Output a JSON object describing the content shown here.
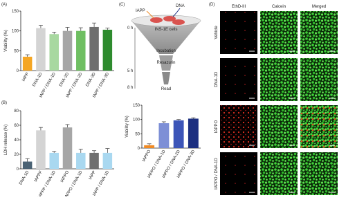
{
  "panels": [
    "(A)",
    "(B)",
    "(C)",
    "(D)"
  ],
  "chart_data": [
    {
      "type": "bar",
      "y_label": "Viability (%)",
      "categories": [
        "IAPP",
        "DNA-1D",
        "IAPP / DNA-1D",
        "DNA-2D",
        "IAPP / DNA-2D",
        "DNA-3D",
        "IAPP / DNA-3D"
      ],
      "values": [
        35,
        107,
        92,
        100,
        100,
        110,
        103
      ],
      "errors": [
        5,
        7,
        5,
        9,
        8,
        10,
        4
      ],
      "colors": [
        "#f5a623",
        "#d4d4d4",
        "#a8d8a0",
        "#a6a6a6",
        "#6fbf62",
        "#6f6f6f",
        "#2e8b2e"
      ],
      "ylim": [
        0,
        150
      ],
      "yticks": [
        0,
        50,
        100,
        150
      ]
    },
    {
      "type": "bar",
      "y_label": "LDH release (%)",
      "categories": [
        "DNA-1D",
        "IAPPF",
        "IAPPF / DNA-1D",
        "IAPPO",
        "IAPPO / DNA-1D",
        "IAPP",
        "IAPP / DNA-1D"
      ],
      "values": [
        10,
        53,
        22,
        57,
        22,
        22,
        22
      ],
      "errors": [
        4,
        4,
        2,
        4,
        5,
        3,
        6
      ],
      "colors": [
        "#4a6274",
        "#d4d4d4",
        "#a9d8f0",
        "#a6a6a6",
        "#a9d8f0",
        "#6f6f6f",
        "#a9d8f0"
      ],
      "ylim": [
        0,
        80
      ],
      "yticks": [
        0,
        20,
        40,
        60,
        80
      ]
    },
    {
      "type": "bar",
      "y_label": "Viability (%)",
      "categories": [
        "IAPPO",
        "IAPPO / DNA-1D",
        "IAPPO / DNA-2D",
        "IAPPO / DNA-3D"
      ],
      "values": [
        10,
        87,
        97,
        103
      ],
      "errors": [
        5,
        5,
        3,
        3
      ],
      "colors": [
        "#f08a24",
        "#7d8fd6",
        "#3c55b8",
        "#1c2f80"
      ],
      "ylim": [
        0,
        150
      ],
      "yticks": [
        0,
        50,
        100,
        150
      ]
    }
  ],
  "diagram": {
    "reagent": "IAPP",
    "dna": "DNA",
    "cells": "INS-1E cells",
    "steps": [
      "Incubation",
      "Resazurin",
      "Read"
    ],
    "times": [
      "0 h",
      "5 h",
      "8 h"
    ]
  },
  "images": {
    "columns": [
      "EthD-III",
      "Calcein",
      "Merged"
    ],
    "rows": [
      "Vehicle",
      "DNA-1D",
      "IAPPO",
      "IAPPO / DNA-1D"
    ]
  }
}
